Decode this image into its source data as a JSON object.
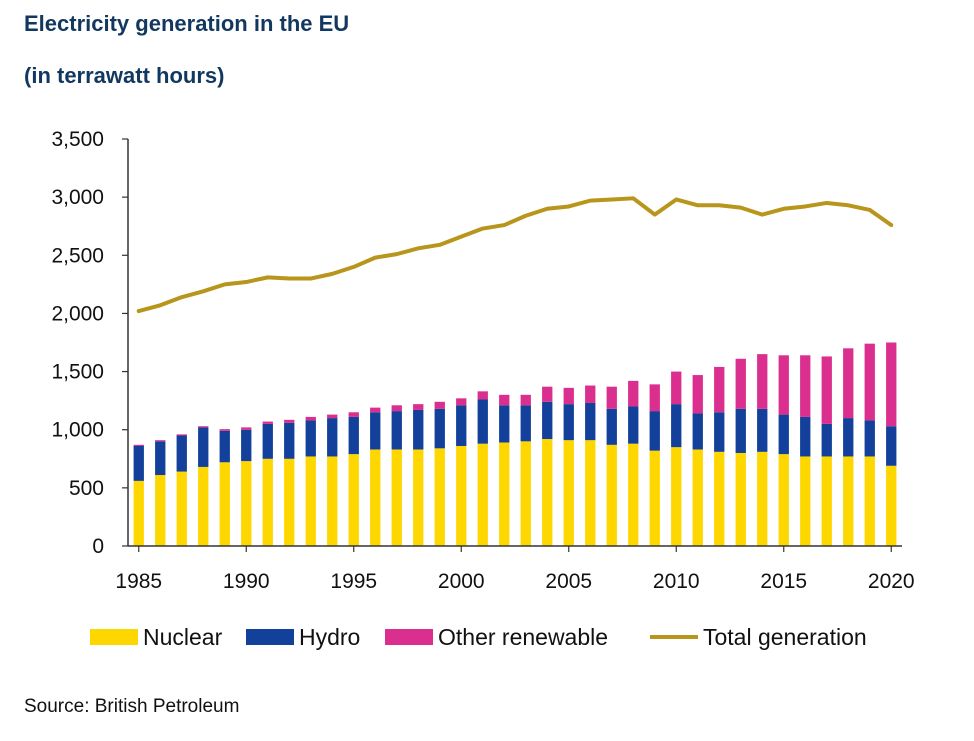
{
  "header": {
    "title": "Electricity generation in the EU",
    "subtitle": "(in terrawatt hours)"
  },
  "source": "Source: British Petroleum",
  "colors": {
    "nuclear": "#FFD700",
    "hydro": "#12409A",
    "other_renewable": "#DA2F8E",
    "total": "#B8951B",
    "axis": "#333333"
  },
  "chart_data": {
    "type": "bar",
    "stacked": true,
    "title": "Electricity generation in the EU",
    "subtitle": "(in terrawatt hours)",
    "ylim": [
      0,
      3500
    ],
    "yticks": [
      0,
      500,
      1000,
      1500,
      2000,
      2500,
      3000,
      3500
    ],
    "ytick_labels": [
      "0",
      "500",
      "1,000",
      "1,500",
      "2,000",
      "2,500",
      "3,000",
      "3,500"
    ],
    "xtick_labels": [
      "1985",
      "1990",
      "1995",
      "2000",
      "2005",
      "2010",
      "2015",
      "2020"
    ],
    "legend_position": "bottom",
    "grid": false,
    "categories": [
      1985,
      1986,
      1987,
      1988,
      1989,
      1990,
      1991,
      1992,
      1993,
      1994,
      1995,
      1996,
      1997,
      1998,
      1999,
      2000,
      2001,
      2002,
      2003,
      2004,
      2005,
      2006,
      2007,
      2008,
      2009,
      2010,
      2011,
      2012,
      2013,
      2014,
      2015,
      2016,
      2017,
      2018,
      2019,
      2020
    ],
    "series": [
      {
        "name": "Nuclear",
        "type": "bar",
        "values": [
          560,
          610,
          640,
          680,
          720,
          730,
          750,
          750,
          770,
          770,
          790,
          830,
          830,
          830,
          840,
          860,
          880,
          890,
          900,
          920,
          910,
          910,
          870,
          880,
          820,
          850,
          830,
          810,
          800,
          810,
          790,
          770,
          770,
          770,
          770,
          690
        ]
      },
      {
        "name": "Hydro",
        "type": "bar",
        "values": [
          300,
          290,
          310,
          340,
          270,
          270,
          300,
          310,
          310,
          330,
          320,
          320,
          330,
          340,
          340,
          350,
          380,
          320,
          310,
          320,
          310,
          320,
          310,
          320,
          340,
          370,
          310,
          340,
          380,
          370,
          340,
          340,
          280,
          330,
          310,
          340
        ]
      },
      {
        "name": "Other renewable",
        "type": "bar",
        "values": [
          10,
          10,
          10,
          10,
          15,
          20,
          20,
          25,
          30,
          30,
          40,
          40,
          50,
          50,
          60,
          60,
          70,
          90,
          90,
          130,
          140,
          150,
          190,
          220,
          230,
          280,
          330,
          390,
          430,
          470,
          510,
          530,
          580,
          600,
          660,
          720
        ]
      },
      {
        "name": "Total generation",
        "type": "line",
        "values": [
          2020,
          2070,
          2140,
          2190,
          2250,
          2270,
          2310,
          2300,
          2300,
          2340,
          2400,
          2480,
          2510,
          2560,
          2590,
          2660,
          2730,
          2760,
          2840,
          2900,
          2920,
          2970,
          2980,
          2990,
          2850,
          2980,
          2930,
          2930,
          2910,
          2850,
          2900,
          2920,
          2950,
          2930,
          2890,
          2760
        ]
      }
    ]
  }
}
